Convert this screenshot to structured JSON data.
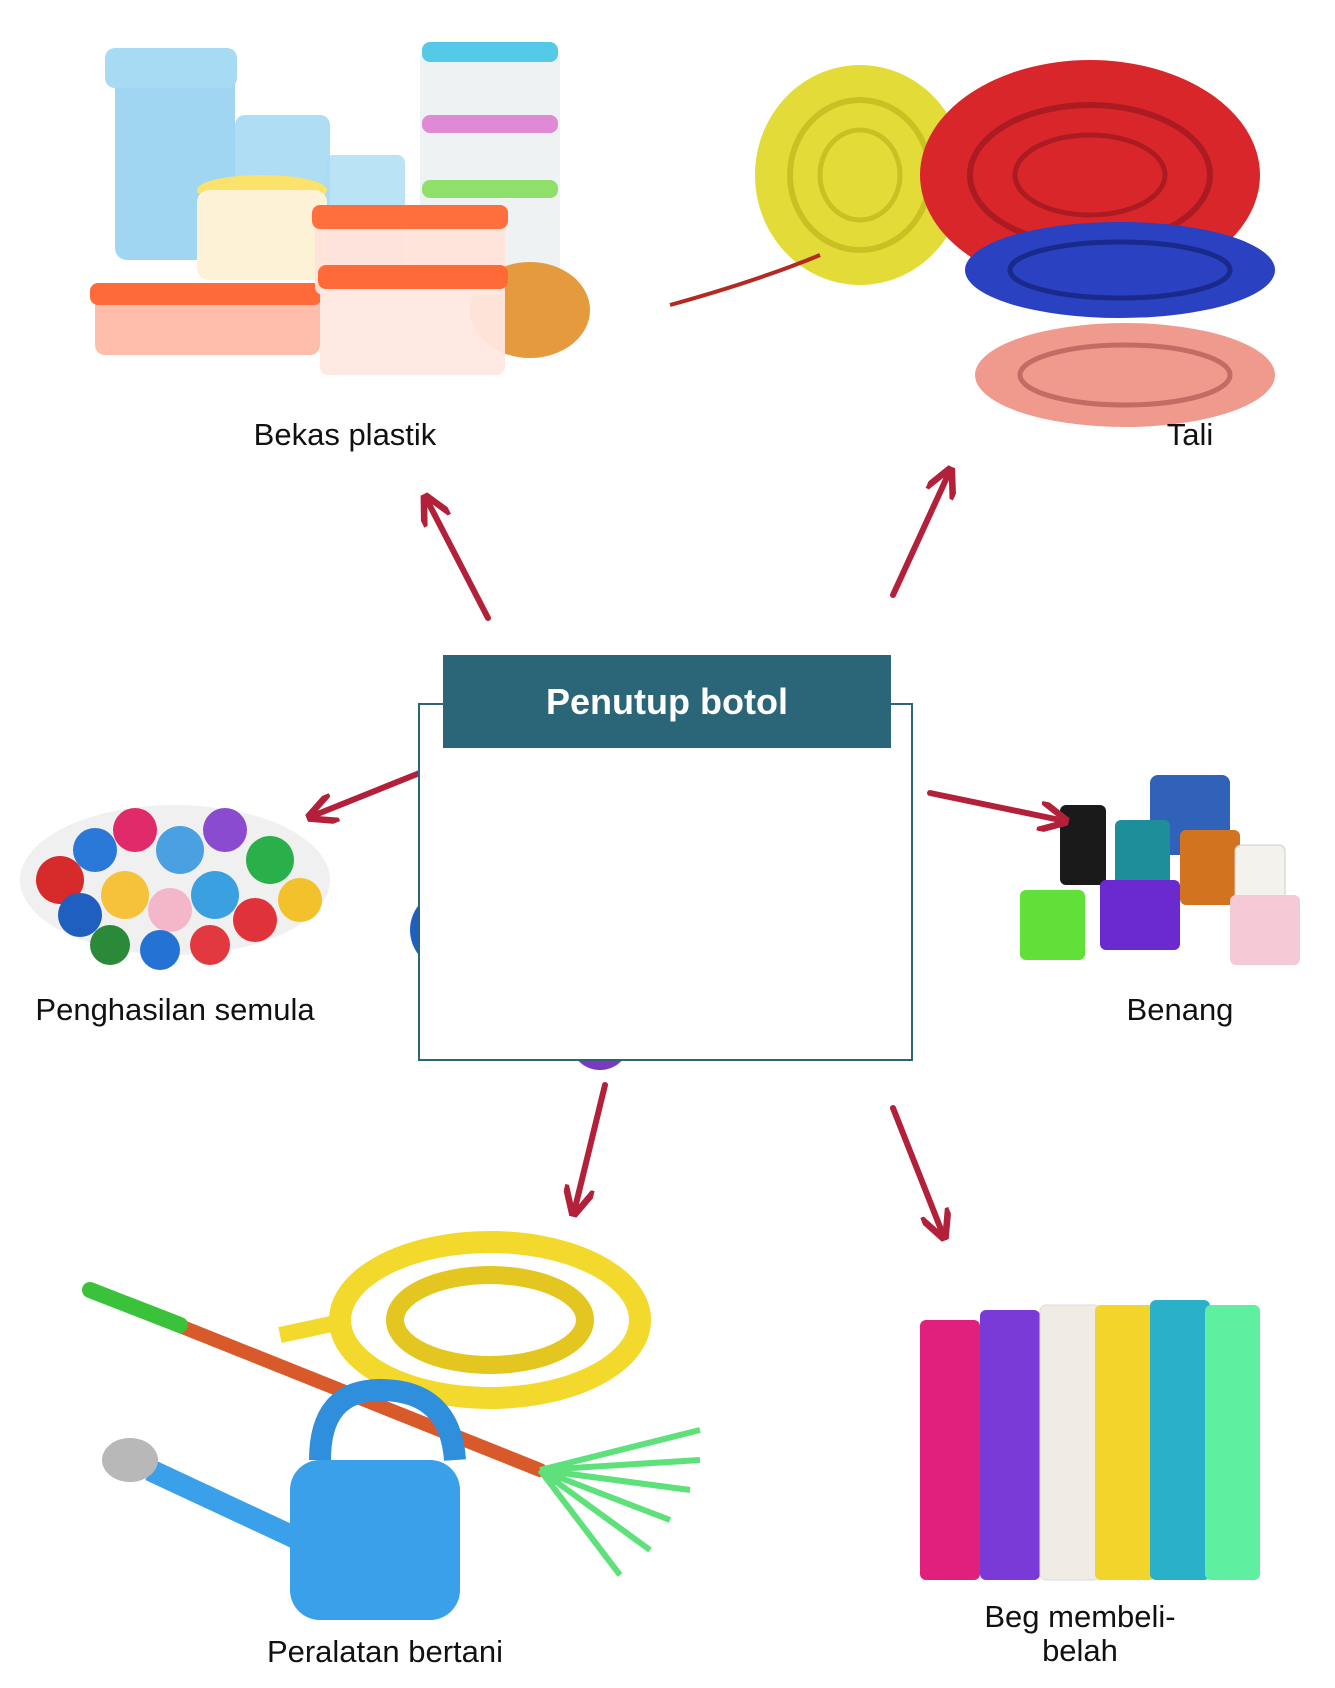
{
  "center": {
    "title": "Penutup botol",
    "image_icon": "bottle-caps-pile"
  },
  "products": [
    {
      "id": "containers",
      "label": "Bekas plastik",
      "icon": "plastic-containers"
    },
    {
      "id": "rope",
      "label": "Tali",
      "icon": "rope-coils"
    },
    {
      "id": "recycled",
      "label": "Penghasilan semula",
      "icon": "bottle-caps-pile"
    },
    {
      "id": "thread",
      "label": "Benang",
      "icon": "thread-spools"
    },
    {
      "id": "garden",
      "label": "Peralatan bertani",
      "icon": "garden-tools"
    },
    {
      "id": "bags",
      "label": "Beg membeli-belah",
      "icon": "shopping-bags"
    }
  ],
  "colors": {
    "arrow": "#b3203a",
    "frame": "#2b6678",
    "title_bg": "#2b6678",
    "title_text": "#ffffff"
  }
}
